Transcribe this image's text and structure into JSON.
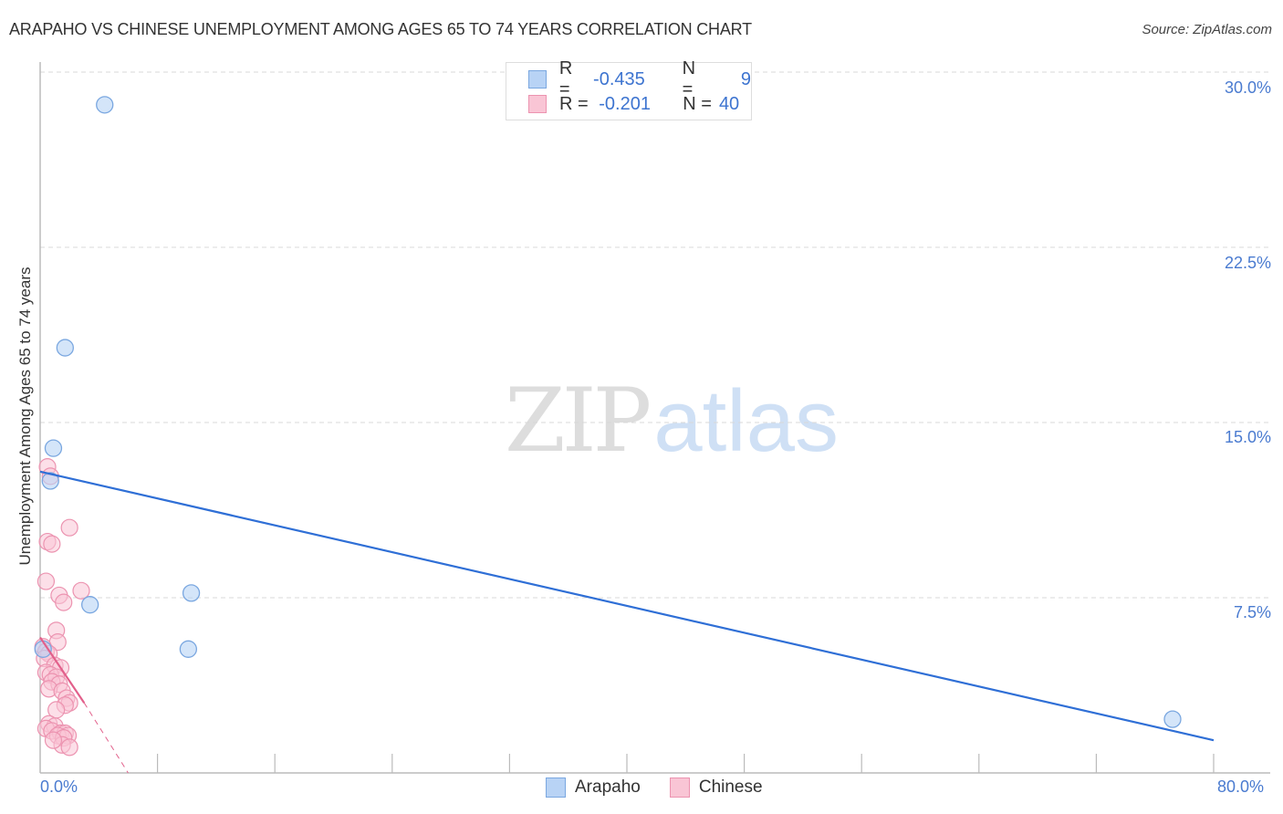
{
  "header": {
    "title": "ARAPAHO VS CHINESE UNEMPLOYMENT AMONG AGES 65 TO 74 YEARS CORRELATION CHART",
    "source": "Source: ZipAtlas.com"
  },
  "legend": {
    "rows": [
      {
        "series": "Arapaho",
        "r_label": "R =",
        "r_value": "-0.435",
        "n_label": "N =",
        "n_value": "9",
        "color": "#b8d3f5"
      },
      {
        "series": "Chinese",
        "r_label": "R =",
        "r_value": "-0.201",
        "n_label": "N =",
        "n_value": "40",
        "color": "#f9c5d5"
      }
    ]
  },
  "bottom_legend": {
    "items": [
      {
        "label": "Arapaho",
        "color": "#b8d3f5"
      },
      {
        "label": "Chinese",
        "color": "#f9c5d5"
      }
    ]
  },
  "watermark": {
    "zip": "ZIP",
    "atlas": "atlas"
  },
  "axes": {
    "ylabel": "Unemployment Among Ages 65 to 74 years",
    "y_ticks": [
      "30.0%",
      "22.5%",
      "15.0%",
      "7.5%"
    ],
    "x_ticks": [
      "0.0%",
      "80.0%"
    ]
  },
  "chart_data": {
    "type": "scatter",
    "title": "ARAPAHO VS CHINESE UNEMPLOYMENT AMONG AGES 65 TO 74 YEARS CORRELATION CHART",
    "xlabel": "",
    "ylabel": "Unemployment Among Ages 65 to 74 years",
    "xlim": [
      0,
      80
    ],
    "ylim": [
      0,
      30
    ],
    "x_tick_labels": [
      "0.0%",
      "80.0%"
    ],
    "y_tick_labels": [
      "7.5%",
      "15.0%",
      "22.5%",
      "30.0%"
    ],
    "grid": "horizontal dashed",
    "legend_position": "top-center and bottom-center",
    "series": [
      {
        "name": "Arapaho",
        "color": "#b8d3f5",
        "stroke": "#7aa7e0",
        "R": -0.435,
        "N": 9,
        "points": [
          [
            4.4,
            28.6
          ],
          [
            1.7,
            18.2
          ],
          [
            0.9,
            13.9
          ],
          [
            0.7,
            12.5
          ],
          [
            3.4,
            7.2
          ],
          [
            10.3,
            7.7
          ],
          [
            10.1,
            5.3
          ],
          [
            77.2,
            2.3
          ],
          [
            0.2,
            5.3
          ]
        ],
        "trendline": {
          "x": [
            0,
            80
          ],
          "y": [
            12.9,
            1.4
          ],
          "color": "#2f6fd6"
        }
      },
      {
        "name": "Chinese",
        "color": "#f9c5d5",
        "stroke": "#ec93b0",
        "R": -0.201,
        "N": 40,
        "points": [
          [
            0.5,
            13.1
          ],
          [
            0.7,
            12.7
          ],
          [
            2.0,
            10.5
          ],
          [
            0.5,
            9.9
          ],
          [
            0.8,
            9.8
          ],
          [
            0.4,
            8.2
          ],
          [
            2.8,
            7.8
          ],
          [
            1.3,
            7.6
          ],
          [
            1.6,
            7.3
          ],
          [
            1.1,
            6.1
          ],
          [
            1.2,
            5.6
          ],
          [
            0.2,
            5.4
          ],
          [
            0.4,
            5.2
          ],
          [
            0.6,
            5.1
          ],
          [
            0.3,
            4.9
          ],
          [
            1.0,
            4.6
          ],
          [
            1.4,
            4.5
          ],
          [
            0.4,
            4.3
          ],
          [
            0.7,
            4.2
          ],
          [
            1.1,
            4.1
          ],
          [
            0.8,
            3.9
          ],
          [
            1.3,
            3.8
          ],
          [
            0.6,
            3.6
          ],
          [
            1.5,
            3.5
          ],
          [
            1.8,
            3.2
          ],
          [
            2.0,
            3.0
          ],
          [
            1.7,
            2.9
          ],
          [
            1.1,
            2.7
          ],
          [
            0.6,
            2.1
          ],
          [
            1.0,
            2.0
          ],
          [
            0.4,
            1.9
          ],
          [
            0.8,
            1.8
          ],
          [
            1.4,
            1.7
          ],
          [
            1.7,
            1.7
          ],
          [
            1.2,
            1.6
          ],
          [
            1.9,
            1.6
          ],
          [
            1.6,
            1.5
          ],
          [
            1.5,
            1.2
          ],
          [
            2.0,
            1.1
          ],
          [
            0.9,
            1.4
          ]
        ],
        "trendline": {
          "x": [
            0,
            3.0
          ],
          "y": [
            5.8,
            3.0
          ],
          "dashed_to": [
            6.0,
            0.0
          ],
          "color": "#e2608b"
        }
      }
    ]
  }
}
